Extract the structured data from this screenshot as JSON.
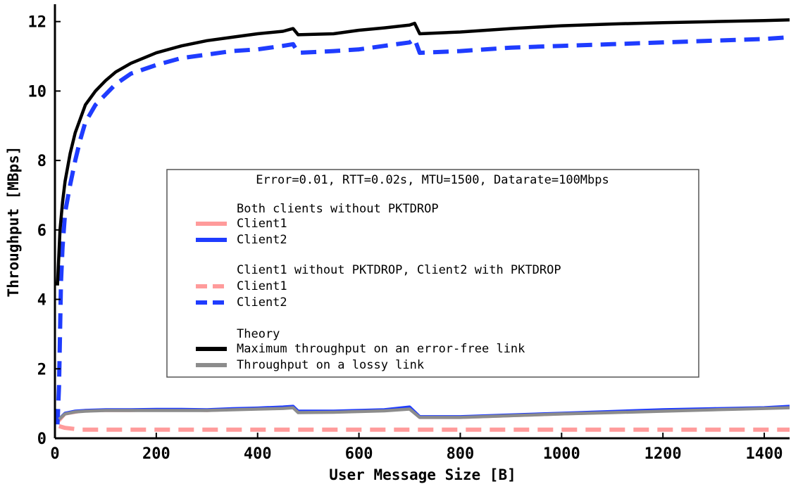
{
  "chart_data": {
    "type": "line",
    "title": "",
    "xlabel": "User Message Size [B]",
    "ylabel": "Throughput [MBps]",
    "xlim": [
      0,
      1450
    ],
    "ylim": [
      0,
      12.5
    ],
    "xticks": [
      0,
      200,
      400,
      600,
      800,
      1000,
      1200,
      1400
    ],
    "yticks": [
      0,
      2,
      4,
      6,
      8,
      10,
      12
    ],
    "grid": false,
    "legend": {
      "placement": "center",
      "title": "Error=0.01, RTT=0.02s, MTU=1500, Datarate=100Mbps",
      "groups": [
        {
          "heading": "Both clients without PKTDROP",
          "entries": [
            "Client1",
            "Client2"
          ]
        },
        {
          "heading": "Client1 without PKTDROP, Client2 with PKTDROP",
          "entries": [
            "Client1",
            "Client2"
          ]
        },
        {
          "heading": "Theory",
          "entries": [
            "Maximum throughput on an error-free link",
            "Throughput on a lossy link"
          ]
        }
      ]
    },
    "series": [
      {
        "group": "Both clients without PKTDROP",
        "name": "Client1",
        "color": "#ff9b9b",
        "dash": "solid",
        "x": [
          8,
          20,
          40,
          60,
          100,
          150,
          200,
          250,
          300,
          350,
          400,
          450,
          470,
          480,
          550,
          600,
          650,
          700,
          720,
          800,
          900,
          1000,
          1100,
          1200,
          1300,
          1400,
          1450
        ],
        "y": [
          0.5,
          0.7,
          0.75,
          0.8,
          0.8,
          0.8,
          0.82,
          0.82,
          0.8,
          0.83,
          0.85,
          0.87,
          0.9,
          0.75,
          0.76,
          0.78,
          0.8,
          0.85,
          0.6,
          0.6,
          0.65,
          0.7,
          0.75,
          0.8,
          0.83,
          0.87,
          0.9
        ]
      },
      {
        "group": "Both clients without PKTDROP",
        "name": "Client2",
        "color": "#1f3cff",
        "dash": "solid",
        "x": [
          8,
          20,
          40,
          60,
          100,
          150,
          200,
          250,
          300,
          350,
          400,
          450,
          470,
          480,
          550,
          600,
          650,
          700,
          720,
          800,
          900,
          1000,
          1100,
          1200,
          1300,
          1400,
          1450
        ],
        "y": [
          0.55,
          0.72,
          0.78,
          0.8,
          0.82,
          0.82,
          0.83,
          0.83,
          0.82,
          0.85,
          0.87,
          0.9,
          0.92,
          0.78,
          0.78,
          0.8,
          0.82,
          0.9,
          0.62,
          0.62,
          0.67,
          0.72,
          0.77,
          0.82,
          0.85,
          0.88,
          0.92
        ]
      },
      {
        "group": "Client1 without PKTDROP, Client2 with PKTDROP",
        "name": "Client1",
        "color": "#ff9b9b",
        "dash": "dashed",
        "x": [
          8,
          20,
          50,
          100,
          200,
          300,
          400,
          500,
          600,
          700,
          800,
          900,
          1000,
          1100,
          1200,
          1300,
          1400,
          1450
        ],
        "y": [
          0.35,
          0.3,
          0.25,
          0.25,
          0.25,
          0.25,
          0.25,
          0.25,
          0.25,
          0.25,
          0.25,
          0.25,
          0.25,
          0.25,
          0.25,
          0.25,
          0.25,
          0.25
        ]
      },
      {
        "group": "Client1 without PKTDROP, Client2 with PKTDROP",
        "name": "Client2",
        "color": "#1f3cff",
        "dash": "dashed",
        "x": [
          5,
          8,
          10,
          12,
          15,
          20,
          30,
          40,
          50,
          60,
          80,
          100,
          120,
          150,
          200,
          250,
          300,
          350,
          400,
          450,
          470,
          480,
          550,
          600,
          650,
          700,
          710,
          720,
          800,
          900,
          1000,
          1100,
          1200,
          1300,
          1400,
          1450
        ],
        "y": [
          0.4,
          1.5,
          3.0,
          4.5,
          5.5,
          6.5,
          7.3,
          8.0,
          8.6,
          9.1,
          9.6,
          9.9,
          10.2,
          10.5,
          10.75,
          10.95,
          11.05,
          11.15,
          11.2,
          11.3,
          11.35,
          11.1,
          11.15,
          11.2,
          11.3,
          11.4,
          11.5,
          11.1,
          11.15,
          11.25,
          11.3,
          11.35,
          11.4,
          11.45,
          11.5,
          11.55
        ]
      },
      {
        "group": "Theory",
        "name": "Maximum throughput on an error-free link",
        "color": "#000000",
        "dash": "solid",
        "x": [
          5,
          10,
          15,
          20,
          30,
          40,
          50,
          60,
          80,
          100,
          120,
          150,
          200,
          250,
          300,
          350,
          400,
          450,
          470,
          480,
          550,
          600,
          650,
          700,
          710,
          720,
          800,
          900,
          1000,
          1100,
          1200,
          1300,
          1400,
          1450
        ],
        "y": [
          4.4,
          6.0,
          6.8,
          7.4,
          8.2,
          8.8,
          9.2,
          9.6,
          10.0,
          10.3,
          10.55,
          10.8,
          11.1,
          11.3,
          11.45,
          11.55,
          11.65,
          11.72,
          11.8,
          11.62,
          11.65,
          11.75,
          11.82,
          11.9,
          11.95,
          11.65,
          11.7,
          11.8,
          11.88,
          11.93,
          11.97,
          12.0,
          12.03,
          12.05
        ]
      },
      {
        "group": "Theory",
        "name": "Throughput on a lossy link",
        "color": "#8c8c8c",
        "dash": "solid",
        "x": [
          8,
          20,
          40,
          60,
          100,
          150,
          200,
          250,
          300,
          350,
          400,
          450,
          470,
          480,
          550,
          600,
          650,
          700,
          720,
          800,
          900,
          1000,
          1100,
          1200,
          1300,
          1400,
          1450
        ],
        "y": [
          0.55,
          0.7,
          0.76,
          0.78,
          0.8,
          0.8,
          0.8,
          0.8,
          0.8,
          0.82,
          0.84,
          0.86,
          0.88,
          0.74,
          0.75,
          0.77,
          0.79,
          0.84,
          0.6,
          0.6,
          0.65,
          0.7,
          0.74,
          0.78,
          0.82,
          0.86,
          0.88
        ]
      }
    ]
  }
}
